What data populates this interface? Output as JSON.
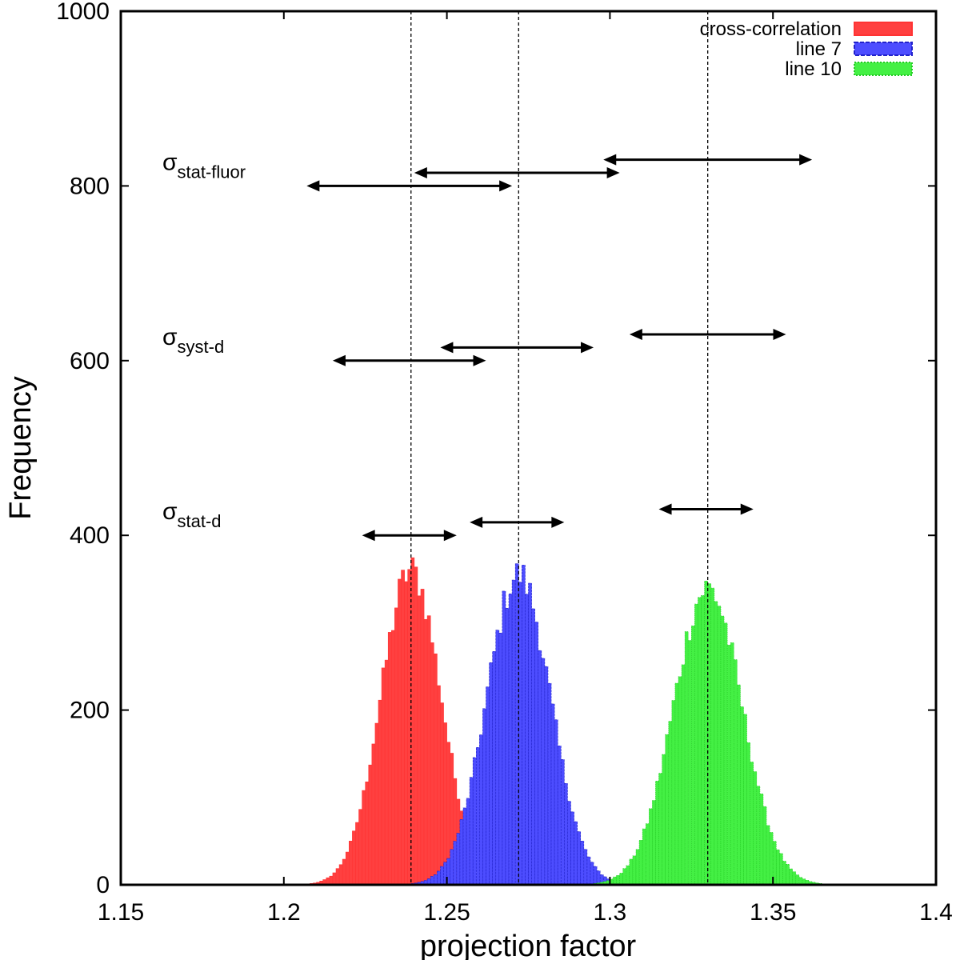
{
  "chart_data": {
    "type": "bar",
    "xlabel": "projection factor",
    "ylabel": "Frequency",
    "xlim": [
      1.15,
      1.4
    ],
    "ylim": [
      0,
      1000
    ],
    "x_ticks": [
      "1.15",
      "1.2",
      "1.25",
      "1.3",
      "1.35",
      "1.4"
    ],
    "y_ticks": [
      "0",
      "200",
      "400",
      "600",
      "800",
      "1000"
    ],
    "legend_position": "top-right",
    "bin_width": 0.001,
    "series": [
      {
        "name": "cross-correlation",
        "color": "#ff3333",
        "fill": "#ff4040",
        "mean": 1.239,
        "sigma": 0.0092,
        "peak": 360,
        "range": [
          1.194,
          1.258
        ]
      },
      {
        "name": "line 7",
        "color": "#2222cc",
        "fill": "#4d4dff",
        "mean": 1.272,
        "sigma": 0.0098,
        "peak": 355,
        "range": [
          1.228,
          1.318
        ]
      },
      {
        "name": "line 10",
        "color": "#22cc22",
        "fill": "#44f044",
        "mean": 1.33,
        "sigma": 0.0105,
        "peak": 340,
        "range": [
          1.285,
          1.382
        ]
      }
    ],
    "vlines": [
      1.239,
      1.272,
      1.33
    ],
    "error_bars": [
      {
        "label_main": "σ",
        "label_sub": "stat-fluor",
        "label_y": 800,
        "bars": [
          {
            "y": 800,
            "x1": 1.207,
            "x2": 1.27
          },
          {
            "y": 815,
            "x1": 1.24,
            "x2": 1.303
          },
          {
            "y": 830,
            "x1": 1.298,
            "x2": 1.362
          }
        ]
      },
      {
        "label_main": "σ",
        "label_sub": "syst-d",
        "label_y": 600,
        "bars": [
          {
            "y": 600,
            "x1": 1.215,
            "x2": 1.262
          },
          {
            "y": 615,
            "x1": 1.248,
            "x2": 1.295
          },
          {
            "y": 630,
            "x1": 1.306,
            "x2": 1.354
          }
        ]
      },
      {
        "label_main": "σ",
        "label_sub": "stat-d",
        "label_y": 400,
        "bars": [
          {
            "y": 400,
            "x1": 1.224,
            "x2": 1.253
          },
          {
            "y": 415,
            "x1": 1.257,
            "x2": 1.286
          },
          {
            "y": 430,
            "x1": 1.315,
            "x2": 1.344
          }
        ]
      }
    ]
  }
}
